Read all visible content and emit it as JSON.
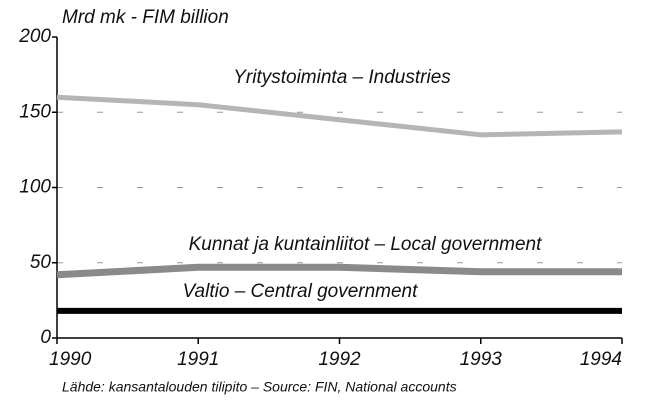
{
  "chart_data": {
    "type": "line",
    "title": "Mrd mk - FIM billion",
    "source": "Lähde: kansantalouden tilipito – Source: FIN, National accounts",
    "x": [
      1990,
      1991,
      1992,
      1993,
      1994
    ],
    "xlim": [
      1990,
      1994
    ],
    "xticks": [
      1990,
      1991,
      1992,
      1993,
      1994
    ],
    "ylim": [
      0,
      200
    ],
    "yticks": [
      0,
      50,
      100,
      150,
      200
    ],
    "grid": true,
    "series": [
      {
        "name": "Yritystoiminta – Industries",
        "color": "#b5b5b5",
        "values": [
          160,
          155,
          145,
          135,
          137
        ]
      },
      {
        "name": "Kunnat ja kuntainliitot – Local government",
        "color": "#8a8a8a",
        "values": [
          42,
          47,
          47,
          44,
          44
        ]
      },
      {
        "name": "Valtio – Central government",
        "color": "#000000",
        "values": [
          18,
          18,
          18,
          18,
          18
        ]
      }
    ]
  }
}
